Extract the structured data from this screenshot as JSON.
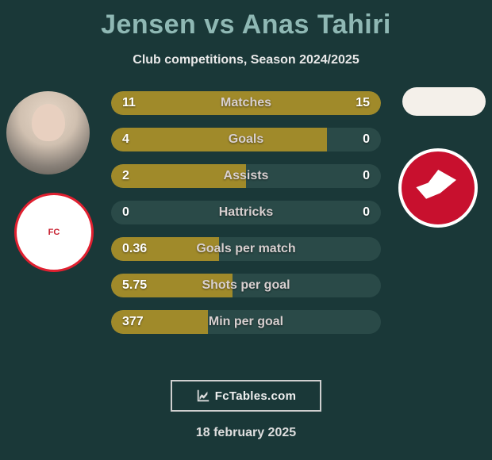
{
  "title": "Jensen vs Anas Tahiri",
  "subtitle": "Club competitions, Season 2024/2025",
  "date": "18 february 2025",
  "footer_label": "FcTables.com",
  "club_left_label": "FC",
  "club_right_label": "ALMERE CITY",
  "colors": {
    "bg": "#1a3838",
    "title": "#8fb8b4",
    "bar_fill": "#a08a2a",
    "bar_track": "#2a4a48",
    "club_right_bg": "#c8102e",
    "club_left_border": "#e02030"
  },
  "stats": [
    {
      "label": "Matches",
      "left_val": "11",
      "right_val": "15",
      "left_pct": 42,
      "right_pct": 58
    },
    {
      "label": "Goals",
      "left_val": "4",
      "right_val": "0",
      "left_pct": 80,
      "right_pct": 0
    },
    {
      "label": "Assists",
      "left_val": "2",
      "right_val": "0",
      "left_pct": 50,
      "right_pct": 0
    },
    {
      "label": "Hattricks",
      "left_val": "0",
      "right_val": "0",
      "left_pct": 0,
      "right_pct": 0
    },
    {
      "label": "Goals per match",
      "left_val": "0.36",
      "right_val": "",
      "left_pct": 40,
      "right_pct": 0
    },
    {
      "label": "Shots per goal",
      "left_val": "5.75",
      "right_val": "",
      "left_pct": 45,
      "right_pct": 0
    },
    {
      "label": "Min per goal",
      "left_val": "377",
      "right_val": "",
      "left_pct": 36,
      "right_pct": 0
    }
  ]
}
